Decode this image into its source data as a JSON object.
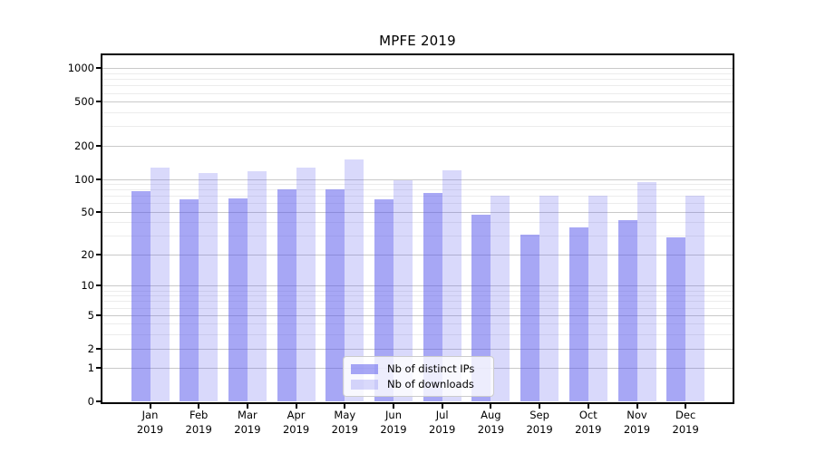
{
  "chart_data": {
    "type": "bar",
    "title": "MPFE 2019",
    "categories": [
      "Jan",
      "Feb",
      "Mar",
      "Apr",
      "May",
      "Jun",
      "Jul",
      "Aug",
      "Sep",
      "Oct",
      "Nov",
      "Dec"
    ],
    "category_year": "2019",
    "series": [
      {
        "name": "Nb of distinct IPs",
        "color": "rgba(80,80,235,0.5)",
        "values": [
          78,
          65,
          67,
          80,
          81,
          65,
          75,
          47,
          31,
          36,
          42,
          29
        ]
      },
      {
        "name": "Nb of downloads",
        "color": "rgba(80,80,235,0.22)",
        "values": [
          126,
          113,
          117,
          127,
          151,
          97,
          120,
          71,
          71,
          71,
          93,
          71
        ]
      }
    ],
    "yscale": "symlog (position = log10(1+value))",
    "yticks": [
      0,
      1,
      2,
      5,
      10,
      20,
      50,
      100,
      200,
      500,
      1000
    ],
    "minor_yticks": [
      3,
      4,
      6,
      7,
      8,
      9,
      30,
      40,
      60,
      70,
      80,
      90,
      300,
      400,
      600,
      700,
      800,
      900
    ],
    "ylim": [
      0,
      1300
    ],
    "xlabel": "",
    "ylabel": "",
    "grid": "both",
    "legend_position": "lower center"
  }
}
